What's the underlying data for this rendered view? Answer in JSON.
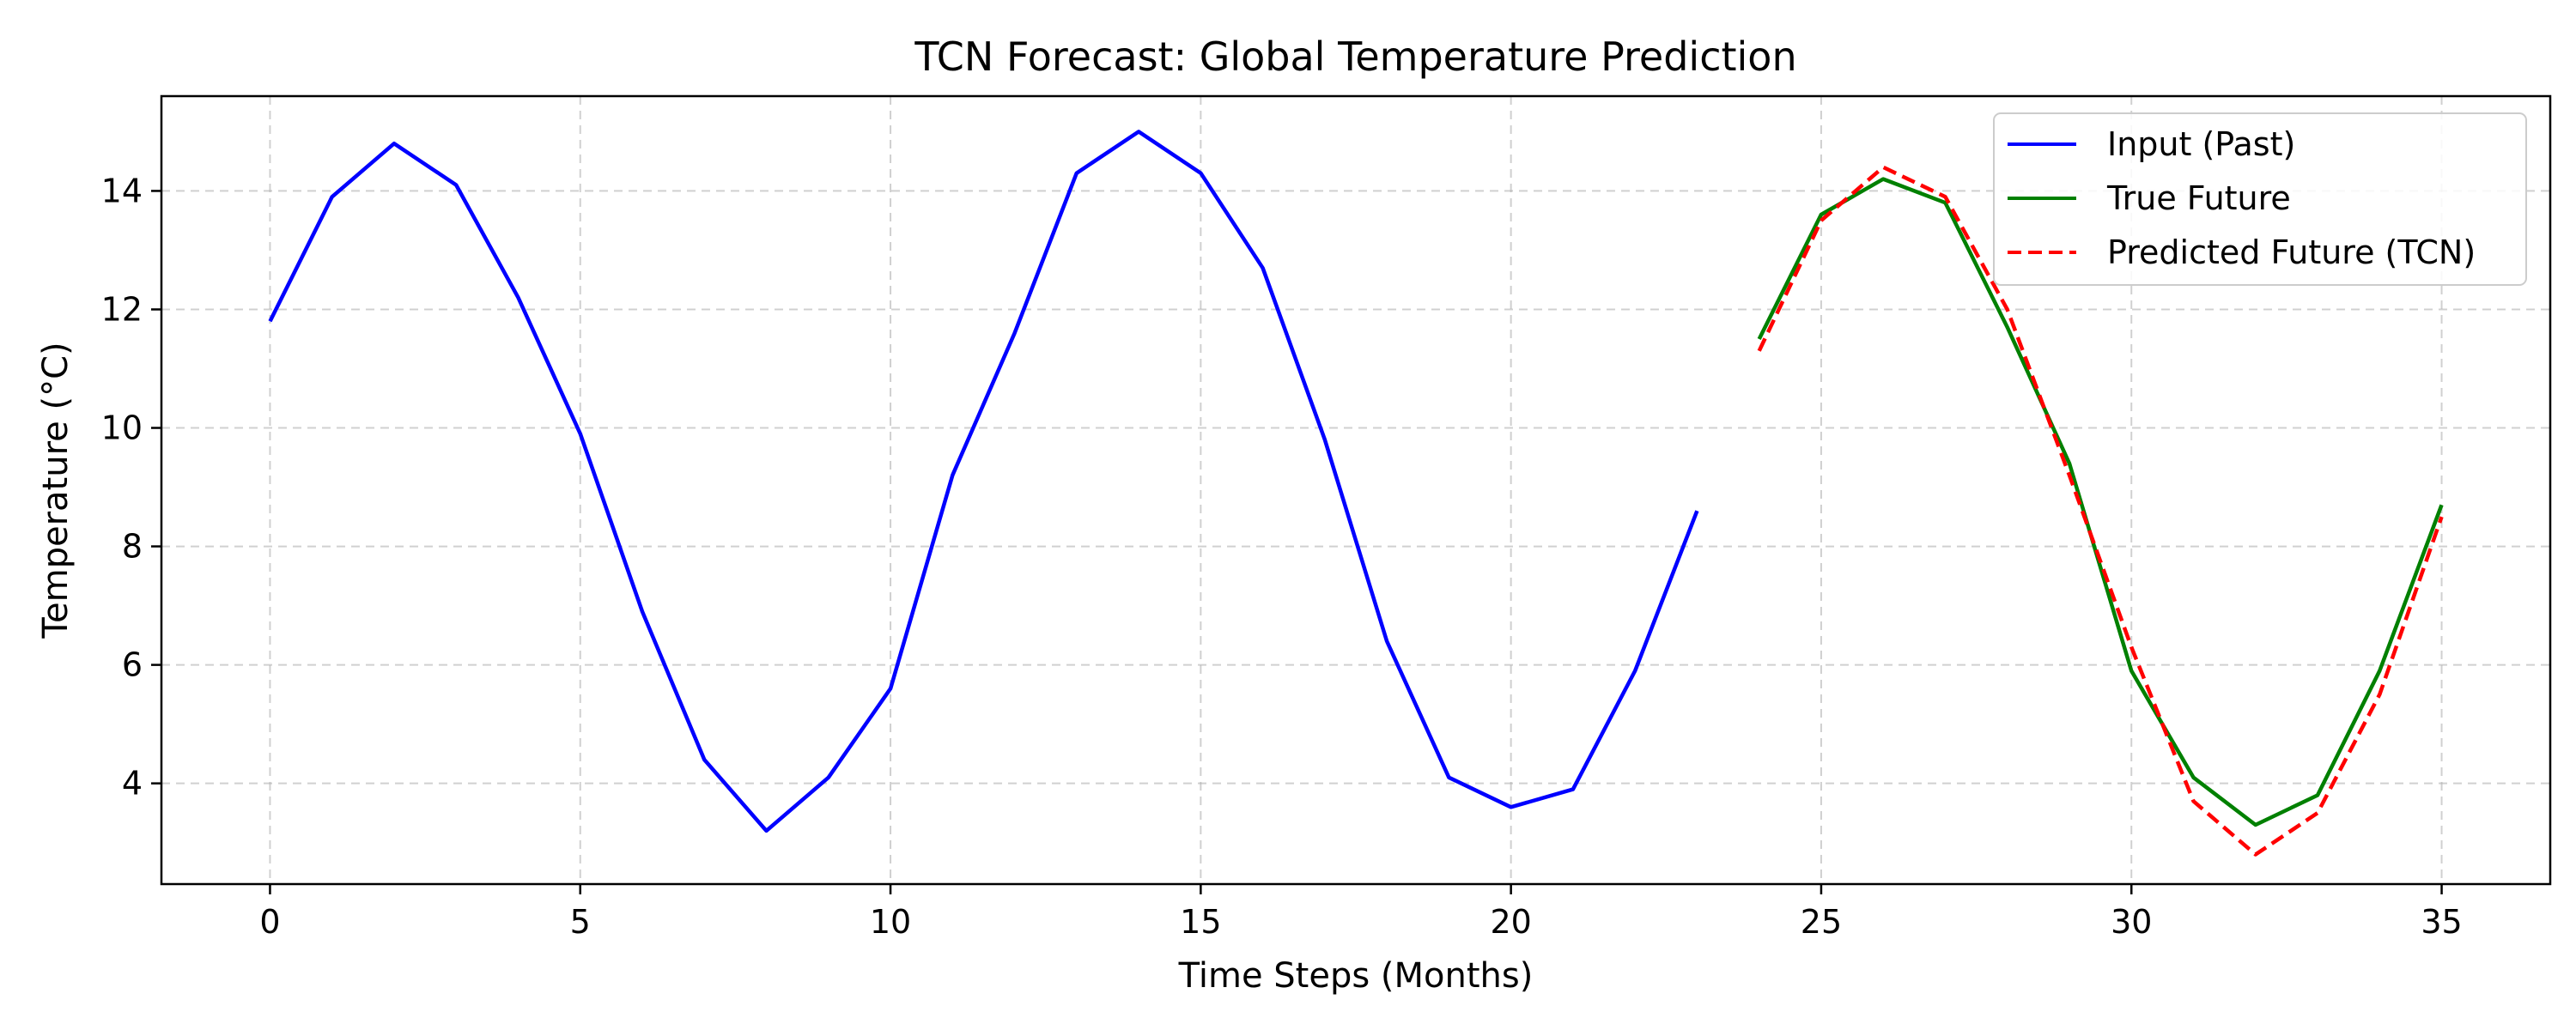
{
  "chart_data": {
    "type": "line",
    "title": "TCN Forecast: Global Temperature Prediction",
    "xlabel": "Time Steps (Months)",
    "ylabel": "Temperature (°C)",
    "xlim": [
      -1.75,
      36.75
    ],
    "ylim": [
      2.3,
      15.6
    ],
    "xticks": [
      0,
      5,
      10,
      15,
      20,
      25,
      30,
      35
    ],
    "yticks": [
      4,
      6,
      8,
      10,
      12,
      14
    ],
    "grid": true,
    "legend_position": "top-right",
    "series": [
      {
        "name": "Input (Past)",
        "color": "#0000ff",
        "style": "solid",
        "x": [
          0,
          1,
          2,
          3,
          4,
          5,
          6,
          7,
          8,
          9,
          10,
          11,
          12,
          13,
          14,
          15,
          16,
          17,
          18,
          19,
          20,
          21,
          22,
          23
        ],
        "y": [
          11.8,
          13.9,
          14.8,
          14.1,
          12.2,
          9.9,
          6.9,
          4.4,
          3.2,
          4.1,
          5.6,
          9.2,
          11.6,
          14.3,
          15.0,
          14.3,
          12.7,
          9.8,
          6.4,
          4.1,
          3.6,
          3.9,
          5.9,
          8.6
        ]
      },
      {
        "name": "True Future",
        "color": "#008000",
        "style": "solid",
        "x": [
          24,
          25,
          26,
          27,
          28,
          29,
          30,
          31,
          32,
          33,
          34,
          35
        ],
        "y": [
          11.5,
          13.6,
          14.2,
          13.8,
          11.7,
          9.4,
          5.9,
          4.1,
          3.3,
          3.8,
          5.9,
          8.7
        ]
      },
      {
        "name": "Predicted Future (TCN)",
        "color": "#ff0000",
        "style": "dashed",
        "x": [
          24,
          25,
          26,
          27,
          28,
          29,
          30,
          31,
          32,
          33,
          34,
          35
        ],
        "y": [
          11.3,
          13.5,
          14.4,
          13.9,
          12.0,
          9.2,
          6.3,
          3.7,
          2.8,
          3.5,
          5.5,
          8.5
        ]
      }
    ]
  }
}
